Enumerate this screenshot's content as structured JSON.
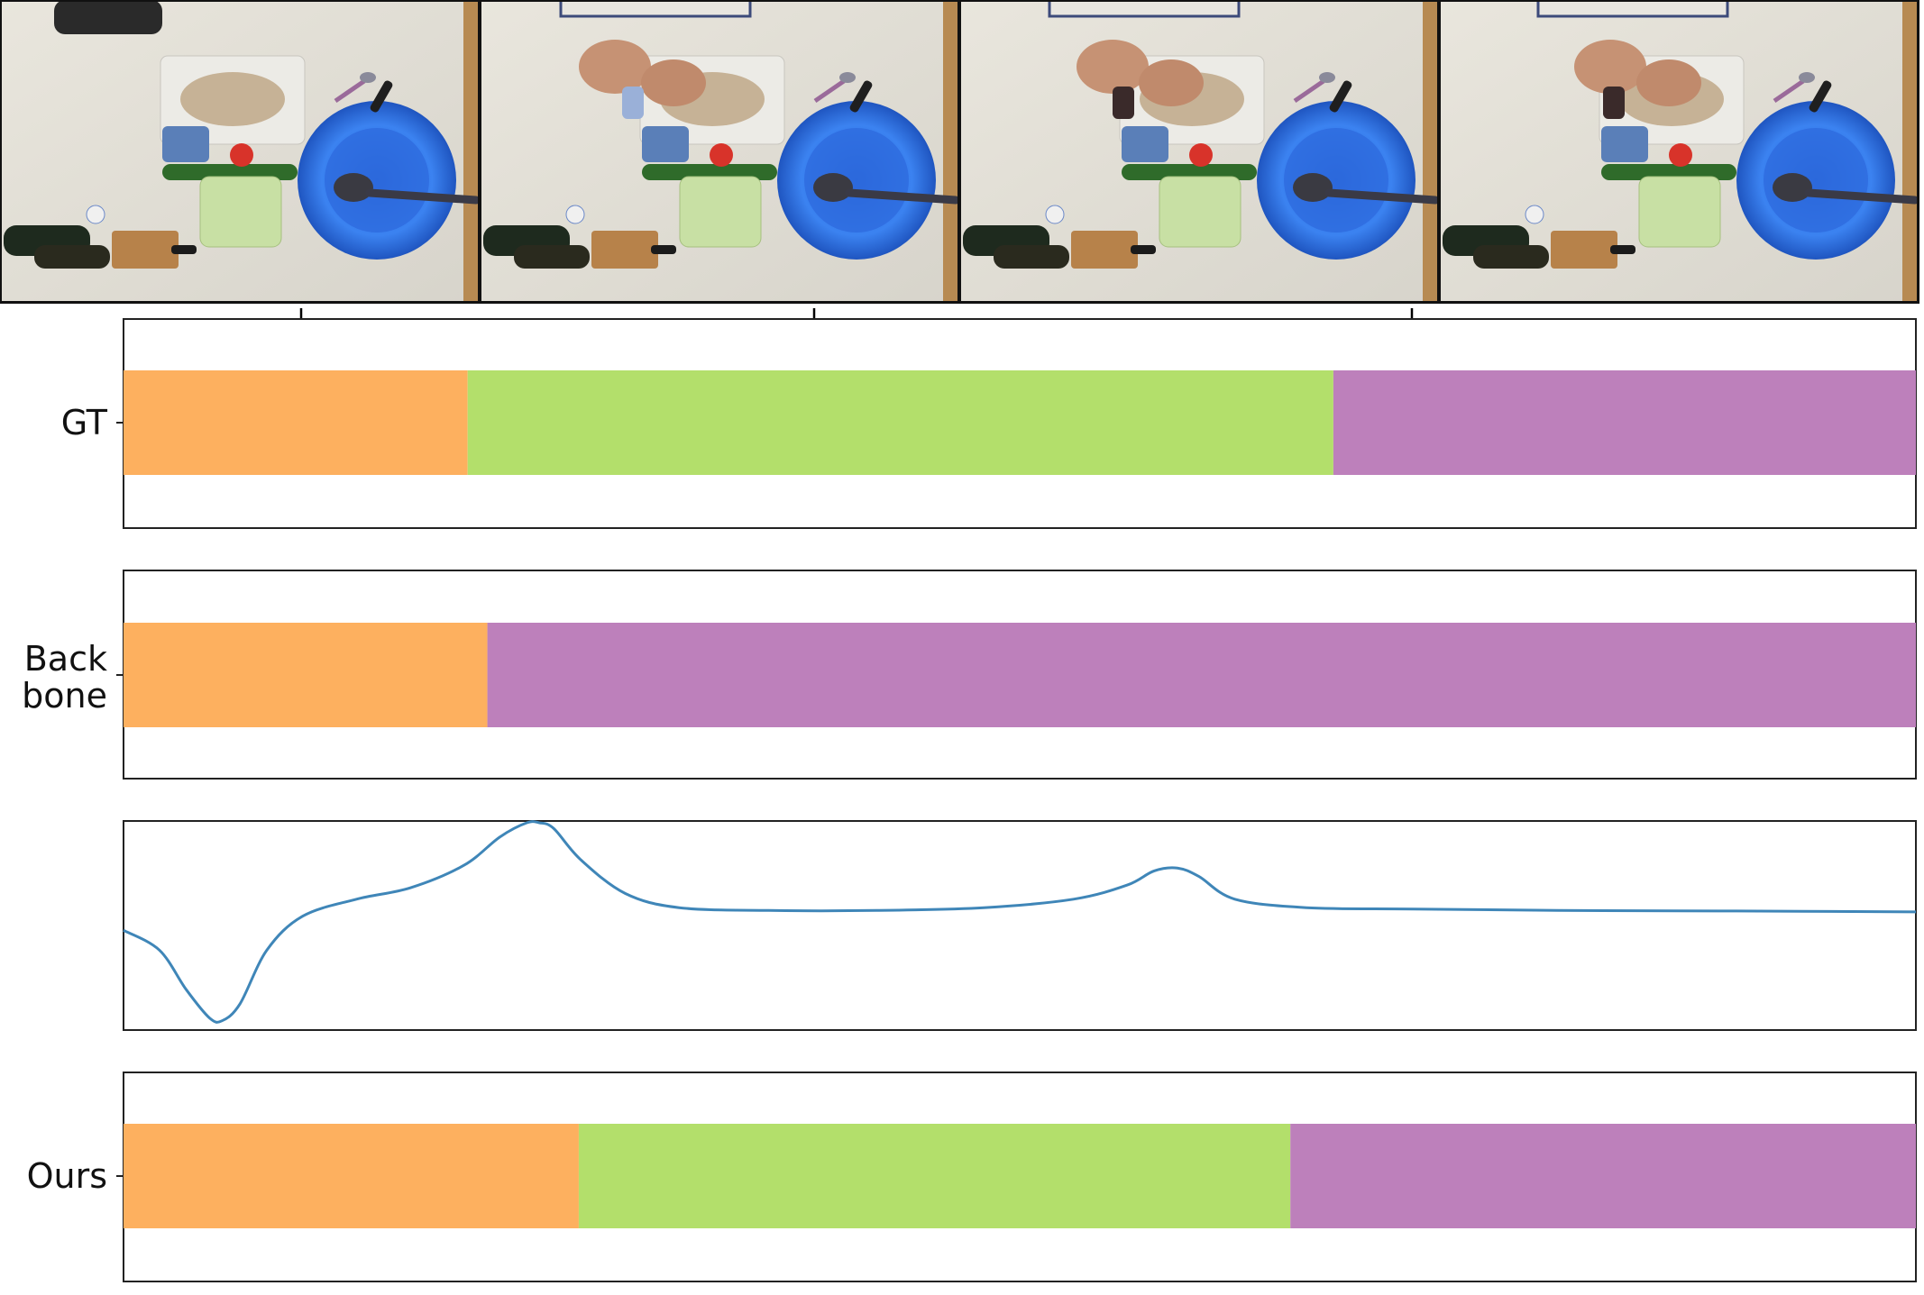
{
  "frames": [
    {
      "name": "frame-1"
    },
    {
      "name": "frame-2"
    },
    {
      "name": "frame-3"
    },
    {
      "name": "frame-4"
    }
  ],
  "colors": {
    "orange": "#fdb05f",
    "green": "#b3df6b",
    "purple": "#bd80bb",
    "curve": "#3f86b8",
    "axis": "#222222"
  },
  "timeline_rows": [
    {
      "id": "gt",
      "label_lines": [
        "GT"
      ],
      "segments": [
        {
          "color": "orange",
          "start": 0.0,
          "end": 0.192
        },
        {
          "color": "green",
          "start": 0.192,
          "end": 0.675
        },
        {
          "color": "purple",
          "start": 0.675,
          "end": 1.0
        }
      ]
    },
    {
      "id": "backbone",
      "label_lines": [
        "Back",
        "bone"
      ],
      "segments": [
        {
          "color": "orange",
          "start": 0.0,
          "end": 0.203
        },
        {
          "color": "purple",
          "start": 0.203,
          "end": 1.0
        }
      ]
    },
    {
      "id": "ours",
      "label_lines": [
        "Ours"
      ],
      "segments": [
        {
          "color": "orange",
          "start": 0.0,
          "end": 0.254
        },
        {
          "color": "green",
          "start": 0.254,
          "end": 0.651
        },
        {
          "color": "purple",
          "start": 0.651,
          "end": 1.0
        }
      ]
    }
  ],
  "chart_data": {
    "type": "line",
    "x": [
      0.0,
      0.02,
      0.035,
      0.048,
      0.055,
      0.065,
      0.08,
      0.1,
      0.13,
      0.16,
      0.19,
      0.21,
      0.225,
      0.232,
      0.24,
      0.255,
      0.28,
      0.31,
      0.36,
      0.42,
      0.48,
      0.53,
      0.56,
      0.575,
      0.588,
      0.6,
      0.62,
      0.66,
      0.72,
      0.8,
      0.9,
      1.0
    ],
    "values": [
      0.62,
      0.55,
      0.41,
      0.31,
      0.3,
      0.36,
      0.55,
      0.67,
      0.73,
      0.77,
      0.85,
      0.95,
      1.0,
      1.0,
      0.98,
      0.87,
      0.75,
      0.7,
      0.69,
      0.69,
      0.7,
      0.73,
      0.78,
      0.83,
      0.84,
      0.81,
      0.73,
      0.7,
      0.695,
      0.69,
      0.688,
      0.685
    ],
    "ylim": [
      0.28,
      1.0
    ],
    "grid": false
  }
}
